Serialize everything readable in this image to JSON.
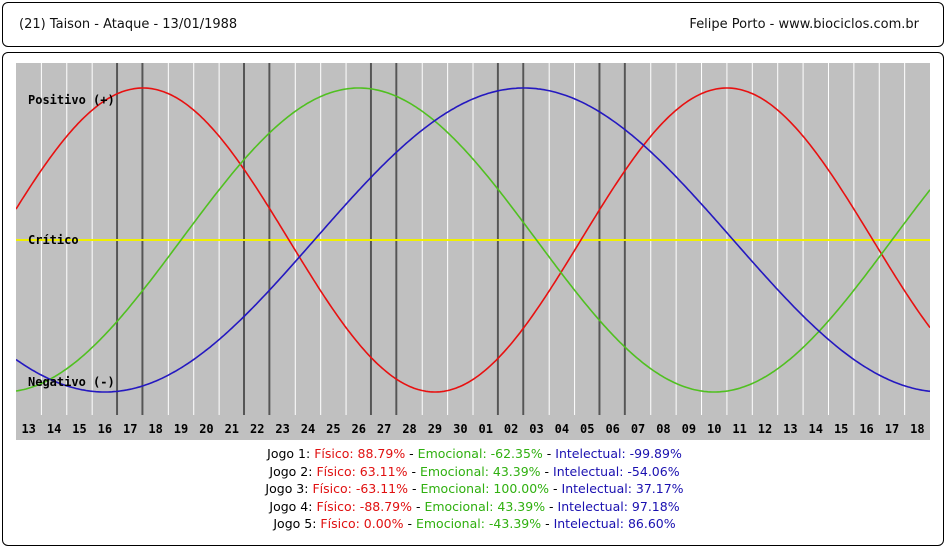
{
  "header": {
    "title": "(21)  Taison - Ataque -  13/01/1988",
    "author": "Felipe Porto   -   www.biociclos.com.br"
  },
  "chart_data": {
    "type": "line",
    "labels": {
      "positive": "Positivo (+)",
      "critical": "Crítico",
      "negative": "Negativo (-)"
    },
    "x_ticks": [
      "13",
      "14",
      "15",
      "16",
      "17",
      "18",
      "19",
      "20",
      "21",
      "22",
      "23",
      "24",
      "25",
      "26",
      "27",
      "28",
      "29",
      "30",
      "01",
      "02",
      "03",
      "04",
      "05",
      "06",
      "07",
      "08",
      "09",
      "10",
      "11",
      "12",
      "13",
      "14",
      "15",
      "16",
      "17",
      "18"
    ],
    "ylim": [
      -100,
      100
    ],
    "colors": {
      "fisico": "#e81010",
      "emocional": "#50c020",
      "intelectual": "#2418c0",
      "critical": "#f0f000",
      "background": "#c0c0c0",
      "grid": "#ffffff",
      "game_line": "#555555"
    },
    "series": [
      {
        "name": "Físico",
        "key": "fisico",
        "period_days": 23,
        "peak_day_index": 5
      },
      {
        "name": "Emocional",
        "key": "emocional",
        "period_days": 28,
        "peak_day_index": 13.5
      },
      {
        "name": "Intelectual",
        "key": "intelectual",
        "period_days": 33,
        "peak_day_index": 20
      }
    ],
    "game_day_indices": [
      4,
      5,
      9,
      10,
      14,
      15,
      19,
      20,
      23,
      24
    ]
  },
  "legend": {
    "games": [
      {
        "label": "Jogo 1:",
        "fisico": "Físico: 88.79%",
        "emocional": "Emocional: -62.35%",
        "intelectual": "Intelectual: -99.89%"
      },
      {
        "label": "Jogo 2:",
        "fisico": "Físico: 63.11%",
        "emocional": "Emocional: 43.39%",
        "intelectual": "Intelectual: -54.06%"
      },
      {
        "label": "Jogo 3:",
        "fisico": "Físico: -63.11%",
        "emocional": "Emocional: 100.00%",
        "intelectual": "Intelectual: 37.17%"
      },
      {
        "label": "Jogo 4:",
        "fisico": "Físico: -88.79%",
        "emocional": "Emocional: 43.39%",
        "intelectual": "Intelectual: 97.18%"
      },
      {
        "label": "Jogo 5:",
        "fisico": "Físico: 0.00%",
        "emocional": "Emocional: -43.39%",
        "intelectual": "Intelectual: 86.60%"
      }
    ],
    "separator": " - "
  }
}
